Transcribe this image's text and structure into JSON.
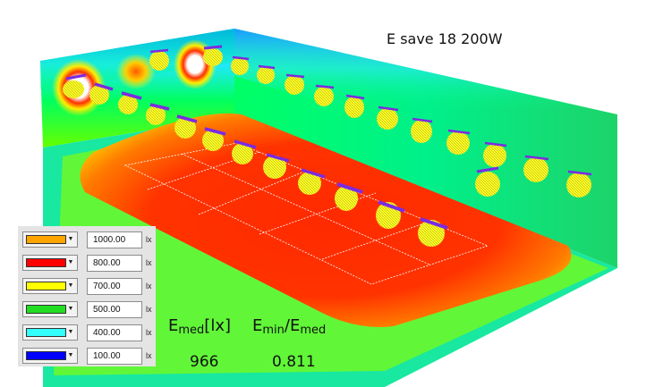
{
  "title": "E save 18 200W",
  "legend": [
    {
      "color": "#ffa500",
      "value": "1000.00",
      "unit": "lx"
    },
    {
      "color": "#ff0000",
      "value": "800.00",
      "unit": "lx"
    },
    {
      "color": "#ffff00",
      "value": "700.00",
      "unit": "lx"
    },
    {
      "color": "#22dd22",
      "value": "500.00",
      "unit": "lx"
    },
    {
      "color": "#33ffff",
      "value": "400.00",
      "unit": "lx"
    },
    {
      "color": "#0000ff",
      "value": "100.00",
      "unit": "lx"
    }
  ],
  "stats": {
    "emed": {
      "symbol": "E",
      "sub": "med",
      "unit": "[lx]",
      "value": "966"
    },
    "uniformity": {
      "num": "E",
      "num_sub": "min",
      "slash": "/",
      "den": "E",
      "den_sub": "med",
      "value": "0.811"
    }
  },
  "luminaire_colors": {
    "body": "#f0f000",
    "mount": "#7a2be2"
  }
}
